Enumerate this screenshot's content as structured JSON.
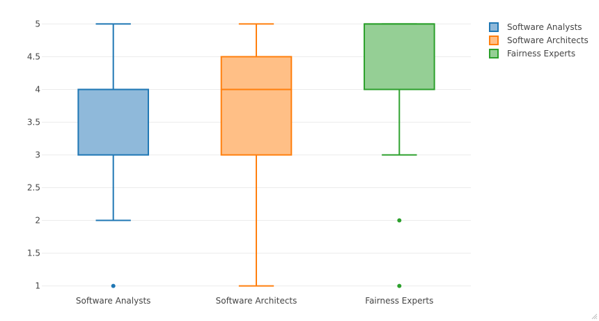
{
  "chart_data": {
    "type": "box",
    "title": "",
    "xlabel": "",
    "ylabel": "",
    "ylim": [
      0.9,
      5.1
    ],
    "y_ticks": [
      1,
      1.5,
      2,
      2.5,
      3,
      3.5,
      4,
      4.5,
      5
    ],
    "y_tick_labels": [
      "1",
      "1.5",
      "2",
      "2.5",
      "3",
      "3.5",
      "4",
      "4.5",
      "5"
    ],
    "grid": true,
    "legend_position": "top-right",
    "categories": [
      "Software Analysts",
      "Software Architects",
      "Fairness Experts"
    ],
    "series": [
      {
        "name": "Software Analysts",
        "color": "#1f77b4",
        "fill": "#8fb9da",
        "q1": 3,
        "median": 4,
        "q3": 4,
        "whisker_low": 2,
        "whisker_high": 5,
        "outliers": [
          1
        ]
      },
      {
        "name": "Software Architects",
        "color": "#ff7f0e",
        "fill": "#ffbf86",
        "q1": 3,
        "median": 4,
        "q3": 4.5,
        "whisker_low": 1,
        "whisker_high": 5,
        "outliers": []
      },
      {
        "name": "Fairness Experts",
        "color": "#2ca02c",
        "fill": "#95cf95",
        "q1": 4,
        "median": 5,
        "q3": 5,
        "whisker_low": 3,
        "whisker_high": 5,
        "outliers": [
          2,
          1
        ]
      }
    ]
  }
}
